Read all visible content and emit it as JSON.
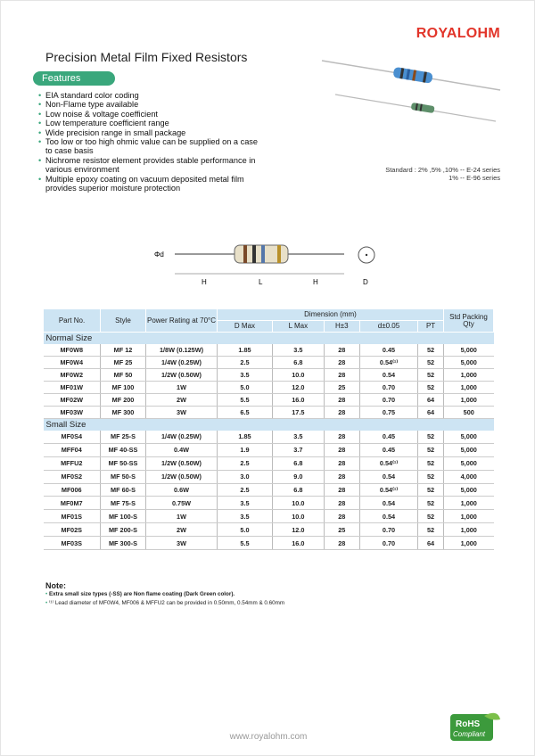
{
  "brand": "ROYALOHM",
  "title": "Precision Metal Film Fixed Resistors",
  "features_label": "Features",
  "features": [
    "EIA standard color coding",
    "Non-Flame type available",
    "Low noise & voltage coefficient",
    "Low temperature coefficient range",
    "Wide precision range in small package",
    "Too low or too high ohmic value can be supplied on a case to case basis",
    "Nichrome resistor element provides stable performance in various environment",
    "Multiple epoxy coating on vacuum deposited metal film provides superior moisture protection"
  ],
  "standard_line1": "Standard : 2% ,5% ,10% -- E-24 series",
  "standard_line2": "1% -- E-96 series",
  "diagram": {
    "d": "Φd",
    "H": "H",
    "L": "L",
    "H2": "H",
    "D": "D"
  },
  "table": {
    "headers": {
      "part": "Part No.",
      "style": "Style",
      "power": "Power Rating at 70°C",
      "dimension": "Dimension (mm)",
      "dmax": "D Max",
      "lmax": "L Max",
      "h": "H±3",
      "d": "d±0.05",
      "pt": "PT",
      "qty": "Std Packing Qty"
    },
    "normal_label": "Normal Size",
    "normal": [
      [
        "MF0W8",
        "MF 12",
        "1/8W (0.125W)",
        "1.85",
        "3.5",
        "28",
        "0.45",
        "52",
        "5,000"
      ],
      [
        "MF0W4",
        "MF 25",
        "1/4W (0.25W)",
        "2.5",
        "6.8",
        "28",
        "0.54⁽¹⁾",
        "52",
        "5,000"
      ],
      [
        "MF0W2",
        "MF 50",
        "1/2W (0.50W)",
        "3.5",
        "10.0",
        "28",
        "0.54",
        "52",
        "1,000"
      ],
      [
        "MF01W",
        "MF 100",
        "1W",
        "5.0",
        "12.0",
        "25",
        "0.70",
        "52",
        "1,000"
      ],
      [
        "MF02W",
        "MF 200",
        "2W",
        "5.5",
        "16.0",
        "28",
        "0.70",
        "64",
        "1,000"
      ],
      [
        "MF03W",
        "MF 300",
        "3W",
        "6.5",
        "17.5",
        "28",
        "0.75",
        "64",
        "500"
      ]
    ],
    "small_label": "Small Size",
    "small": [
      [
        "MF0S4",
        "MF 25-S",
        "1/4W (0.25W)",
        "1.85",
        "3.5",
        "28",
        "0.45",
        "52",
        "5,000"
      ],
      [
        "MFF04",
        "MF 40-SS",
        "0.4W",
        "1.9",
        "3.7",
        "28",
        "0.45",
        "52",
        "5,000"
      ],
      [
        "MFFU2",
        "MF 50-SS",
        "1/2W (0.50W)",
        "2.5",
        "6.8",
        "28",
        "0.54⁽¹⁾",
        "52",
        "5,000"
      ],
      [
        "MF0S2",
        "MF 50-S",
        "1/2W (0.50W)",
        "3.0",
        "9.0",
        "28",
        "0.54",
        "52",
        "4,000"
      ],
      [
        "MF006",
        "MF 60-S",
        "0.6W",
        "2.5",
        "6.8",
        "28",
        "0.54⁽¹⁾",
        "52",
        "5,000"
      ],
      [
        "MF0M7",
        "MF 75-S",
        "0.75W",
        "3.5",
        "10.0",
        "28",
        "0.54",
        "52",
        "1,000"
      ],
      [
        "MF01S",
        "MF 100-S",
        "1W",
        "3.5",
        "10.0",
        "28",
        "0.54",
        "52",
        "1,000"
      ],
      [
        "MF02S",
        "MF 200-S",
        "2W",
        "5.0",
        "12.0",
        "25",
        "0.70",
        "52",
        "1,000"
      ],
      [
        "MF03S",
        "MF 300-S",
        "3W",
        "5.5",
        "16.0",
        "28",
        "0.70",
        "64",
        "1,000"
      ]
    ]
  },
  "notes": {
    "heading": "Note:",
    "items": [
      "Extra small size types (-SS) are Non flame coating (Dark Green color).",
      "⁽¹⁾ Lead diameter of MF0W4, MF006 & MFFU2 can be provided in 0.50mm, 0.54mm & 0.60mm"
    ]
  },
  "footer_url": "www.royalohm.com",
  "rohs": {
    "line1": "RoHS",
    "line2": "Compliant"
  },
  "colors": {
    "brand": "#e2352a",
    "accent": "#3aa77c",
    "table_header": "#cde4f3"
  }
}
